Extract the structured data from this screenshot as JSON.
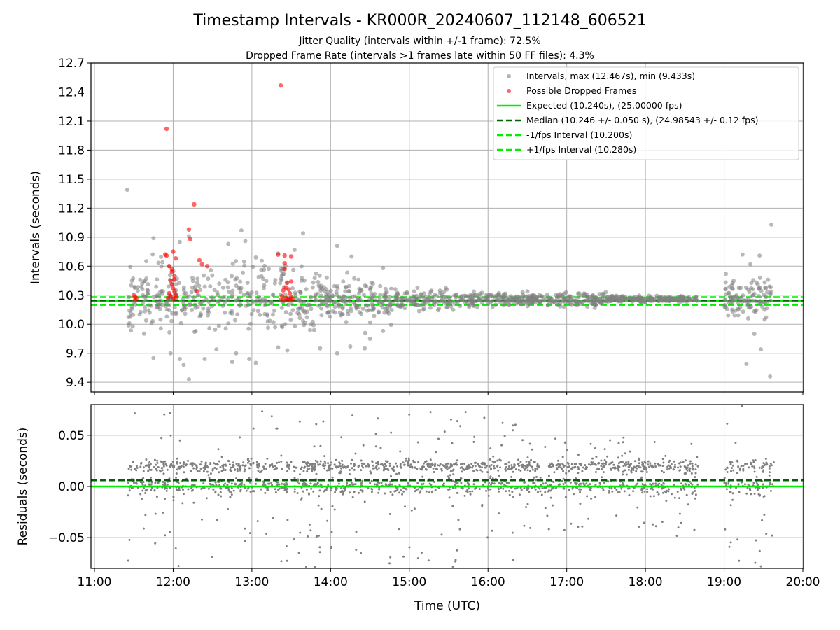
{
  "figure": {
    "title": "Timestamp Intervals - KR000R_20240607_112148_606521",
    "subtitle_1": "Jitter Quality (intervals within +/-1 frame): 72.5%",
    "subtitle_2": "Dropped Frame Rate (intervals >1 frames late within 50 FF files): 4.3%"
  },
  "chart_data": [
    {
      "type": "scatter",
      "panel": "top",
      "ylabel": "Intervals (seconds)",
      "xlabel": "",
      "xlim": [
        "11:00",
        "20:00"
      ],
      "ylim": [
        9.3,
        12.7
      ],
      "x_ticks": [
        "11:00",
        "12:00",
        "13:00",
        "14:00",
        "15:00",
        "16:00",
        "17:00",
        "18:00",
        "19:00",
        "20:00"
      ],
      "y_ticks": [
        "9.4",
        "9.7",
        "10.0",
        "10.3",
        "10.6",
        "10.9",
        "11.2",
        "11.5",
        "11.8",
        "12.1",
        "12.4",
        "12.7"
      ],
      "grid": true,
      "legend_position": "top-right",
      "legend": [
        {
          "label": "Intervals, max (12.467s), min (9.433s)",
          "kind": "marker",
          "color": "#808080"
        },
        {
          "label": "Possible Dropped Frames",
          "kind": "marker",
          "color": "#ff0000"
        },
        {
          "label": "Expected (10.240s), (25.00000 fps)",
          "kind": "solid",
          "color": "#00ee00"
        },
        {
          "label": "Median (10.246 +/- 0.050 s), (24.98543 +/- 0.12 fps)",
          "kind": "dashed",
          "color": "#006400"
        },
        {
          "label": "-1/fps Interval (10.200s)",
          "kind": "dashed",
          "color": "#00ee00"
        },
        {
          "label": "+1/fps Interval (10.280s)",
          "kind": "dashed",
          "color": "#00ee00"
        }
      ],
      "reference_lines": {
        "expected": 10.24,
        "median": 10.246,
        "minus_1fps": 10.2,
        "plus_1fps": 10.28
      },
      "series": [
        {
          "name": "Intervals, max (12.467s), min (9.433s)",
          "color": "#808080",
          "outliers": [
            {
              "x": "11:25",
              "y": 11.39
            },
            {
              "x": "11:45",
              "y": 10.89
            },
            {
              "x": "11:45",
              "y": 9.65
            },
            {
              "x": "11:58",
              "y": 9.7
            },
            {
              "x": "12:05",
              "y": 10.85
            },
            {
              "x": "12:05",
              "y": 9.64
            },
            {
              "x": "12:08",
              "y": 9.58
            },
            {
              "x": "12:12",
              "y": 10.91
            },
            {
              "x": "12:12",
              "y": 9.43
            },
            {
              "x": "12:24",
              "y": 9.64
            },
            {
              "x": "12:33",
              "y": 9.74
            },
            {
              "x": "12:42",
              "y": 10.83
            },
            {
              "x": "12:45",
              "y": 9.61
            },
            {
              "x": "12:48",
              "y": 9.7
            },
            {
              "x": "12:52",
              "y": 10.97
            },
            {
              "x": "12:55",
              "y": 10.86
            },
            {
              "x": "12:58",
              "y": 9.64
            },
            {
              "x": "13:03",
              "y": 9.6
            },
            {
              "x": "13:03",
              "y": 10.69
            },
            {
              "x": "13:20",
              "y": 9.76
            },
            {
              "x": "13:27",
              "y": 9.73
            },
            {
              "x": "13:39",
              "y": 10.94
            },
            {
              "x": "13:52",
              "y": 9.75
            },
            {
              "x": "14:05",
              "y": 10.81
            },
            {
              "x": "14:05",
              "y": 9.7
            },
            {
              "x": "14:16",
              "y": 10.7
            },
            {
              "x": "14:15",
              "y": 9.77
            },
            {
              "x": "14:26",
              "y": 9.75
            },
            {
              "x": "14:30",
              "y": 9.85
            },
            {
              "x": "14:40",
              "y": 10.58
            },
            {
              "x": "14:40",
              "y": 9.93
            },
            {
              "x": "19:14",
              "y": 10.72
            },
            {
              "x": "19:17",
              "y": 9.59
            },
            {
              "x": "19:20",
              "y": 10.62
            },
            {
              "x": "19:23",
              "y": 9.9
            },
            {
              "x": "19:27",
              "y": 10.71
            },
            {
              "x": "19:28",
              "y": 9.74
            },
            {
              "x": "19:35",
              "y": 9.46
            },
            {
              "x": "19:36",
              "y": 11.03
            }
          ]
        },
        {
          "name": "Possible Dropped Frames",
          "color": "#ff0000",
          "points": [
            {
              "x": "11:55",
              "y": 12.02
            },
            {
              "x": "12:16",
              "y": 11.24
            },
            {
              "x": "12:12",
              "y": 10.98
            },
            {
              "x": "12:13",
              "y": 10.88
            },
            {
              "x": "11:54",
              "y": 10.72
            },
            {
              "x": "11:55",
              "y": 10.71
            },
            {
              "x": "12:00",
              "y": 10.75
            },
            {
              "x": "12:02",
              "y": 10.68
            },
            {
              "x": "12:20",
              "y": 10.66
            },
            {
              "x": "11:57",
              "y": 10.6
            },
            {
              "x": "11:59",
              "y": 10.57
            },
            {
              "x": "12:22",
              "y": 10.62
            },
            {
              "x": "12:26",
              "y": 10.6
            },
            {
              "x": "11:59",
              "y": 10.54
            },
            {
              "x": "12:01",
              "y": 10.5
            },
            {
              "x": "12:01",
              "y": 10.46
            },
            {
              "x": "11:58",
              "y": 10.45
            },
            {
              "x": "11:59",
              "y": 10.41
            },
            {
              "x": "12:00",
              "y": 10.37
            },
            {
              "x": "12:01",
              "y": 10.34
            },
            {
              "x": "11:57",
              "y": 10.32
            },
            {
              "x": "12:02",
              "y": 10.3
            },
            {
              "x": "12:18",
              "y": 10.34
            },
            {
              "x": "11:56",
              "y": 10.27
            },
            {
              "x": "11:58",
              "y": 10.29
            },
            {
              "x": "12:00",
              "y": 10.26
            },
            {
              "x": "12:02",
              "y": 10.27
            },
            {
              "x": "11:30",
              "y": 10.3
            },
            {
              "x": "11:31",
              "y": 10.28
            },
            {
              "x": "11:32",
              "y": 10.27
            },
            {
              "x": "11:31",
              "y": 10.25
            },
            {
              "x": "13:20",
              "y": 10.72
            },
            {
              "x": "13:25",
              "y": 10.71
            },
            {
              "x": "13:30",
              "y": 10.7
            },
            {
              "x": "13:25",
              "y": 10.63
            },
            {
              "x": "13:25",
              "y": 10.57
            },
            {
              "x": "13:27",
              "y": 10.43
            },
            {
              "x": "13:30",
              "y": 10.44
            },
            {
              "x": "13:26",
              "y": 10.38
            },
            {
              "x": "13:24",
              "y": 10.35
            },
            {
              "x": "13:28",
              "y": 10.36
            },
            {
              "x": "13:29",
              "y": 10.32
            },
            {
              "x": "13:23",
              "y": 10.29
            },
            {
              "x": "13:26",
              "y": 10.27
            },
            {
              "x": "13:28",
              "y": 10.26
            },
            {
              "x": "13:30",
              "y": 10.28
            },
            {
              "x": "13:31",
              "y": 10.26
            },
            {
              "x": "13:22",
              "y": 10.25
            },
            {
              "x": "13:24",
              "y": 10.25
            },
            {
              "x": "13:27",
              "y": 10.25
            },
            {
              "x": "13:29",
              "y": 10.25
            }
          ]
        }
      ]
    },
    {
      "type": "scatter",
      "panel": "bottom",
      "ylabel": "Residuals (seconds)",
      "xlabel": "Time (UTC)",
      "xlim": [
        "11:00",
        "20:00"
      ],
      "ylim": [
        -0.08,
        0.08
      ],
      "x_ticks": [
        "11:00",
        "12:00",
        "13:00",
        "14:00",
        "15:00",
        "16:00",
        "17:00",
        "18:00",
        "19:00",
        "20:00"
      ],
      "y_ticks": [
        "−0.05",
        "0.00",
        "0.05"
      ],
      "grid": true,
      "reference_lines": {
        "zero": 0.0,
        "median_residual": 0.006
      },
      "series": [
        {
          "color": "#808080"
        }
      ]
    }
  ]
}
